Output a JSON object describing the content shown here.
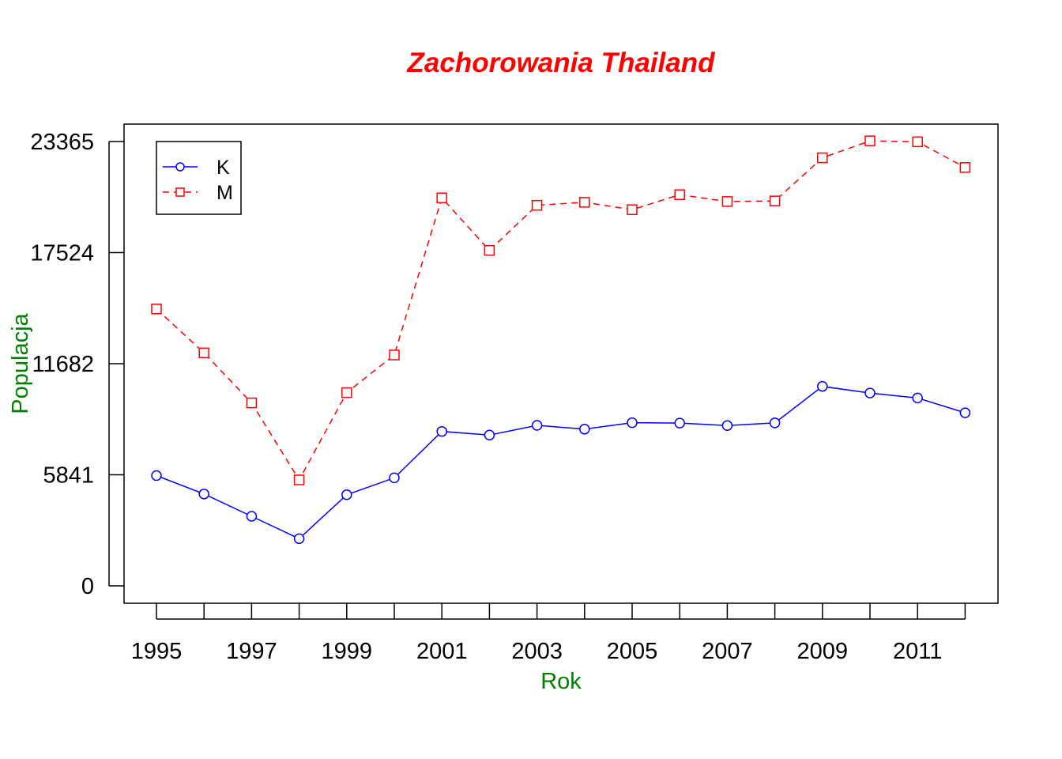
{
  "chart_data": {
    "type": "line",
    "title": "Zachorowania Thailand",
    "xlabel": "Rok",
    "ylabel": "Populacja",
    "x": [
      1995,
      1996,
      1997,
      1998,
      1999,
      2000,
      2001,
      2002,
      2003,
      2004,
      2005,
      2006,
      2007,
      2008,
      2009,
      2010,
      2011,
      2012
    ],
    "x_tick_labels": [
      "1995",
      "1997",
      "1999",
      "2001",
      "2003",
      "2005",
      "2007",
      "2009",
      "2011"
    ],
    "y_ticks": [
      0,
      5841,
      11682,
      17524,
      23365
    ],
    "y_tick_labels": [
      "0",
      "5841",
      "11682",
      "17524",
      "23365"
    ],
    "xlim": [
      1995,
      2012
    ],
    "ylim": [
      0,
      23365
    ],
    "grid": false,
    "legend_position": "top-left",
    "series": [
      {
        "name": "K",
        "color": "#0000ff",
        "line_style": "solid",
        "marker": "circle",
        "values": [
          5800,
          4830,
          3660,
          2480,
          4790,
          5680,
          8120,
          7930,
          8440,
          8240,
          8580,
          8560,
          8430,
          8570,
          10490,
          10140,
          9880,
          9100
        ]
      },
      {
        "name": "M",
        "color": "#ff0000",
        "line_style": "dashed",
        "marker": "square",
        "values": [
          14560,
          12250,
          9620,
          5570,
          10160,
          12140,
          20400,
          17640,
          20010,
          20170,
          19780,
          20570,
          20210,
          20240,
          22510,
          23400,
          23350,
          22000
        ]
      }
    ]
  },
  "colors": {
    "title": "#ff0000",
    "axis_titles": "#008000",
    "axes": "#000000"
  }
}
